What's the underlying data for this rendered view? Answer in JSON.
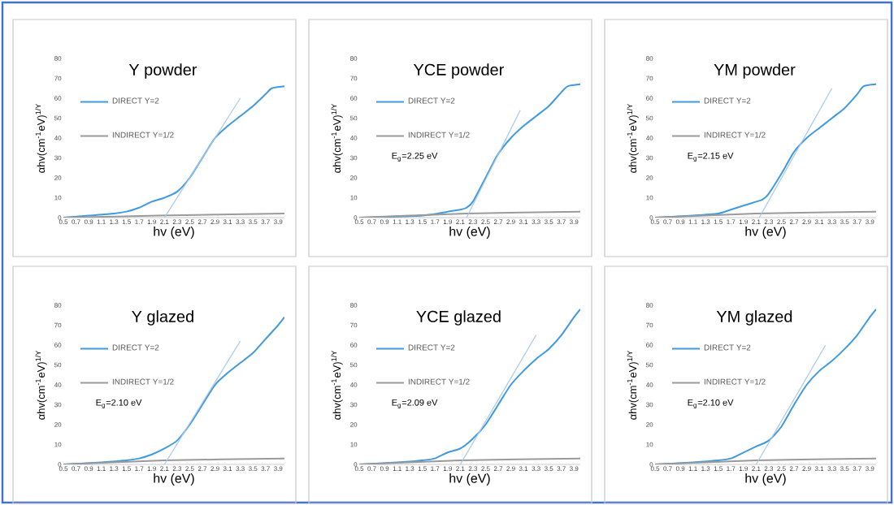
{
  "chart_data": [
    {
      "type": "line",
      "title": "Y powder",
      "xlabel": "hv (eV)",
      "ylabel": "αhv(cm$^{-1}$eV)$^{1/Y}$",
      "xlim": [
        0.5,
        4.0
      ],
      "ylim": [
        0,
        80
      ],
      "xticks": [
        0.5,
        0.7,
        0.9,
        1.1,
        1.3,
        1.5,
        1.7,
        1.9,
        2.1,
        2.3,
        2.5,
        2.7,
        2.9,
        3.1,
        3.3,
        3.5,
        3.7,
        3.9
      ],
      "yticks": [
        0,
        10,
        20,
        30,
        40,
        50,
        60,
        70,
        80
      ],
      "legend": "left",
      "grid": false,
      "marker": "none",
      "series": [
        {
          "name": "DIRECT Y=2",
          "color": "#3f9ae0",
          "x": [
            0.5,
            0.9,
            1.3,
            1.5,
            1.7,
            1.9,
            2.1,
            2.3,
            2.5,
            2.7,
            2.9,
            3.1,
            3.3,
            3.5,
            3.7,
            3.8,
            4.0
          ],
          "values": [
            0,
            1,
            2,
            3,
            5,
            8,
            10,
            13,
            20,
            30,
            40,
            46,
            51,
            56,
            62,
            65,
            66
          ]
        },
        {
          "name": "INDIRECT Y=1/2",
          "color": "#9a9a9a",
          "x": [
            0.5,
            2.0,
            4.0
          ],
          "values": [
            0,
            1,
            2
          ]
        },
        {
          "color": "#a8c8ea",
          "x": [
            2.1,
            3.3
          ],
          "values": [
            0,
            60
          ]
        }
      ]
    },
    {
      "type": "line",
      "title": "YCE powder",
      "xlabel": "hv (eV)",
      "ylabel": "αhv(cm$^{-1}$eV)$^{1/Y}$",
      "xlim": [
        0.5,
        4.0
      ],
      "ylim": [
        0,
        80
      ],
      "xticks": [
        0.5,
        0.7,
        0.9,
        1.1,
        1.3,
        1.5,
        1.7,
        1.9,
        2.1,
        2.3,
        2.5,
        2.7,
        2.9,
        3.1,
        3.3,
        3.5,
        3.7,
        3.9
      ],
      "yticks": [
        0,
        10,
        20,
        30,
        40,
        50,
        60,
        70,
        80
      ],
      "legend": "left",
      "grid": false,
      "marker": "none",
      "annotations": [
        "E$_{g}$=2.25 eV"
      ],
      "series": [
        {
          "name": "DIRECT Y=2",
          "color": "#3f9ae0",
          "x": [
            0.5,
            1.5,
            1.9,
            2.1,
            2.2,
            2.3,
            2.5,
            2.7,
            2.9,
            3.1,
            3.3,
            3.5,
            3.7,
            3.8,
            4.0
          ],
          "values": [
            0,
            1,
            3,
            4,
            5,
            8,
            20,
            32,
            40,
            46,
            51,
            56,
            63,
            66,
            67
          ]
        },
        {
          "name": "INDIRECT Y=1/2",
          "color": "#9a9a9a",
          "x": [
            0.5,
            2.2,
            4.0
          ],
          "values": [
            0,
            2,
            3
          ]
        },
        {
          "color": "#a8c8ea",
          "x": [
            2.2,
            3.05
          ],
          "values": [
            0,
            54
          ]
        }
      ]
    },
    {
      "type": "line",
      "title": "YM powder",
      "xlabel": "hv (eV)",
      "ylabel": "αhv(cm$^{-1}$eV)$^{1/Y}$",
      "xlim": [
        0.5,
        4.0
      ],
      "ylim": [
        0,
        80
      ],
      "xticks": [
        0.5,
        0.7,
        0.9,
        1.1,
        1.3,
        1.5,
        1.7,
        1.9,
        2.1,
        2.3,
        2.5,
        2.7,
        2.9,
        3.1,
        3.3,
        3.5,
        3.7,
        3.9
      ],
      "yticks": [
        0,
        10,
        20,
        30,
        40,
        50,
        60,
        70,
        80
      ],
      "legend": "left",
      "grid": false,
      "marker": "none",
      "annotations": [
        "E$_{g}$=2.15 eV"
      ],
      "series": [
        {
          "name": "DIRECT Y=2",
          "color": "#3f9ae0",
          "x": [
            0.5,
            1.1,
            1.5,
            1.7,
            1.9,
            2.1,
            2.2,
            2.3,
            2.5,
            2.7,
            2.9,
            3.1,
            3.3,
            3.5,
            3.7,
            3.8,
            4.0
          ],
          "values": [
            0,
            1,
            2,
            4,
            6,
            8,
            9,
            12,
            22,
            33,
            40,
            45,
            50,
            55,
            62,
            66,
            67
          ]
        },
        {
          "name": "INDIRECT Y=1/2",
          "color": "#9a9a9a",
          "x": [
            0.5,
            2.1,
            4.0
          ],
          "values": [
            0,
            2,
            3
          ]
        },
        {
          "color": "#a8c8ea",
          "x": [
            2.15,
            3.3
          ],
          "values": [
            0,
            65
          ]
        }
      ]
    },
    {
      "type": "line",
      "title": "Y glazed",
      "xlabel": "hv (eV)",
      "ylabel": "αhv(cm$^{-1}$eV)$^{1/Y}$",
      "xlim": [
        0.5,
        4.0
      ],
      "ylim": [
        0,
        80
      ],
      "xticks": [
        0.5,
        0.7,
        0.9,
        1.1,
        1.3,
        1.5,
        1.7,
        1.9,
        2.1,
        2.3,
        2.5,
        2.7,
        2.9,
        3.1,
        3.3,
        3.5,
        3.7,
        3.9
      ],
      "yticks": [
        0,
        10,
        20,
        30,
        40,
        50,
        60,
        70,
        80
      ],
      "legend": "left",
      "grid": false,
      "marker": "none",
      "annotations": [
        "E$_{g}$=2.10 eV"
      ],
      "series": [
        {
          "name": "DIRECT Y=2",
          "color": "#3f9ae0",
          "x": [
            0.5,
            1.1,
            1.5,
            1.7,
            1.9,
            2.1,
            2.3,
            2.5,
            2.7,
            2.9,
            3.1,
            3.3,
            3.5,
            3.7,
            3.9,
            4.0
          ],
          "values": [
            0,
            1,
            2,
            3,
            5,
            8,
            12,
            20,
            30,
            40,
            46,
            51,
            56,
            63,
            70,
            74
          ]
        },
        {
          "name": "INDIRECT Y=1/2",
          "color": "#9a9a9a",
          "x": [
            0.5,
            2.1,
            4.0
          ],
          "values": [
            0,
            2,
            3
          ]
        },
        {
          "color": "#a8c8ea",
          "x": [
            2.1,
            3.3
          ],
          "values": [
            0,
            62
          ]
        }
      ]
    },
    {
      "type": "line",
      "title": "YCE glazed",
      "xlabel": "hv (eV)",
      "ylabel": "αhv(cm$^{-1}$eV)$^{1/Y}$",
      "xlim": [
        0.5,
        4.0
      ],
      "ylim": [
        0,
        80
      ],
      "xticks": [
        0.5,
        0.7,
        0.9,
        1.1,
        1.3,
        1.5,
        1.7,
        1.9,
        2.1,
        2.3,
        2.5,
        2.7,
        2.9,
        3.1,
        3.3,
        3.5,
        3.7,
        3.9
      ],
      "yticks": [
        0,
        10,
        20,
        30,
        40,
        50,
        60,
        70,
        80
      ],
      "legend": "left",
      "grid": false,
      "marker": "none",
      "annotations": [
        "E$_{g}$=2.09 eV"
      ],
      "series": [
        {
          "name": "DIRECT Y=2",
          "color": "#3f9ae0",
          "x": [
            0.5,
            1.1,
            1.5,
            1.7,
            1.9,
            2.1,
            2.3,
            2.5,
            2.7,
            2.9,
            3.1,
            3.3,
            3.5,
            3.7,
            3.9,
            4.0
          ],
          "values": [
            0,
            1,
            2,
            3,
            6,
            8,
            13,
            20,
            30,
            40,
            47,
            53,
            58,
            65,
            74,
            78
          ]
        },
        {
          "name": "INDIRECT Y=1/2",
          "color": "#9a9a9a",
          "x": [
            0.5,
            2.1,
            4.0
          ],
          "values": [
            0,
            2,
            3
          ]
        },
        {
          "color": "#a8c8ea",
          "x": [
            2.1,
            3.3
          ],
          "values": [
            0,
            65
          ]
        }
      ]
    },
    {
      "type": "line",
      "title": "YM glazed",
      "xlabel": "hv (eV)",
      "ylabel": "αhv(cm$^{-1}$eV)$^{1/Y}$",
      "xlim": [
        0.5,
        4.0
      ],
      "ylim": [
        0,
        80
      ],
      "xticks": [
        0.5,
        0.7,
        0.9,
        1.1,
        1.3,
        1.5,
        1.7,
        1.9,
        2.1,
        2.3,
        2.5,
        2.7,
        2.9,
        3.1,
        3.3,
        3.5,
        3.7,
        3.9
      ],
      "yticks": [
        0,
        10,
        20,
        30,
        40,
        50,
        60,
        70,
        80
      ],
      "legend": "left",
      "grid": false,
      "marker": "none",
      "annotations": [
        "E$_{g}$=2.10 eV"
      ],
      "series": [
        {
          "name": "DIRECT Y=2",
          "color": "#3f9ae0",
          "x": [
            0.5,
            1.1,
            1.5,
            1.7,
            1.9,
            2.1,
            2.3,
            2.5,
            2.7,
            2.9,
            3.1,
            3.3,
            3.5,
            3.7,
            3.9,
            4.0
          ],
          "values": [
            0,
            1,
            2,
            3,
            6,
            9,
            12,
            19,
            30,
            40,
            47,
            52,
            58,
            65,
            74,
            78
          ]
        },
        {
          "name": "INDIRECT Y=1/2",
          "color": "#9a9a9a",
          "x": [
            0.5,
            2.1,
            4.0
          ],
          "values": [
            0,
            2,
            3
          ]
        },
        {
          "color": "#a8c8ea",
          "x": [
            2.1,
            3.2
          ],
          "values": [
            0,
            60
          ]
        }
      ]
    }
  ]
}
